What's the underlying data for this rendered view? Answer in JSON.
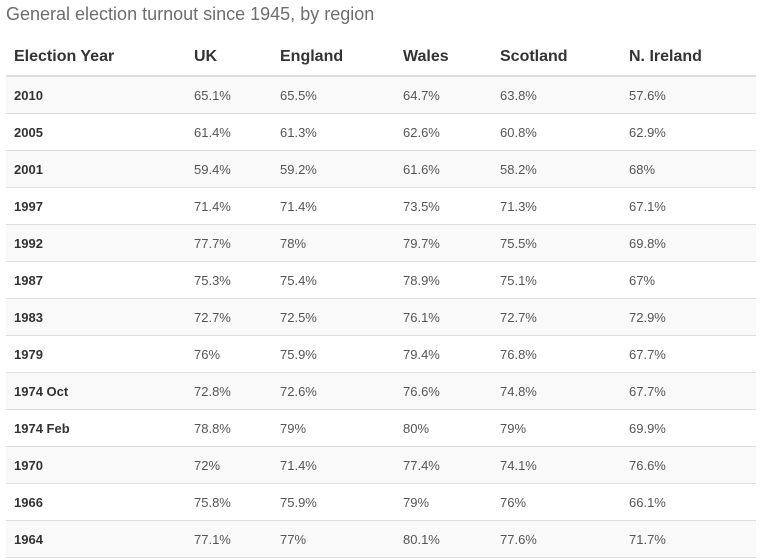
{
  "chart_data": {
    "type": "table",
    "title": "General election turnout since 1945, by region",
    "columns": [
      "Election Year",
      "UK",
      "England",
      "Wales",
      "Scotland",
      "N. Ireland"
    ],
    "rows": [
      [
        "2010",
        "65.1%",
        "65.5%",
        "64.7%",
        "63.8%",
        "57.6%"
      ],
      [
        "2005",
        "61.4%",
        "61.3%",
        "62.6%",
        "60.8%",
        "62.9%"
      ],
      [
        "2001",
        "59.4%",
        "59.2%",
        "61.6%",
        "58.2%",
        "68%"
      ],
      [
        "1997",
        "71.4%",
        "71.4%",
        "73.5%",
        "71.3%",
        "67.1%"
      ],
      [
        "1992",
        "77.7%",
        "78%",
        "79.7%",
        "75.5%",
        "69.8%"
      ],
      [
        "1987",
        "75.3%",
        "75.4%",
        "78.9%",
        "75.1%",
        "67%"
      ],
      [
        "1983",
        "72.7%",
        "72.5%",
        "76.1%",
        "72.7%",
        "72.9%"
      ],
      [
        "1979",
        "76%",
        "75.9%",
        "79.4%",
        "76.8%",
        "67.7%"
      ],
      [
        "1974 Oct",
        "72.8%",
        "72.6%",
        "76.6%",
        "74.8%",
        "67.7%"
      ],
      [
        "1974 Feb",
        "78.8%",
        "79%",
        "80%",
        "79%",
        "69.9%"
      ],
      [
        "1970",
        "72%",
        "71.4%",
        "77.4%",
        "74.1%",
        "76.6%"
      ],
      [
        "1966",
        "75.8%",
        "75.9%",
        "79%",
        "76%",
        "66.1%"
      ],
      [
        "1964",
        "77.1%",
        "77%",
        "80.1%",
        "77.6%",
        "71.7%"
      ]
    ]
  }
}
